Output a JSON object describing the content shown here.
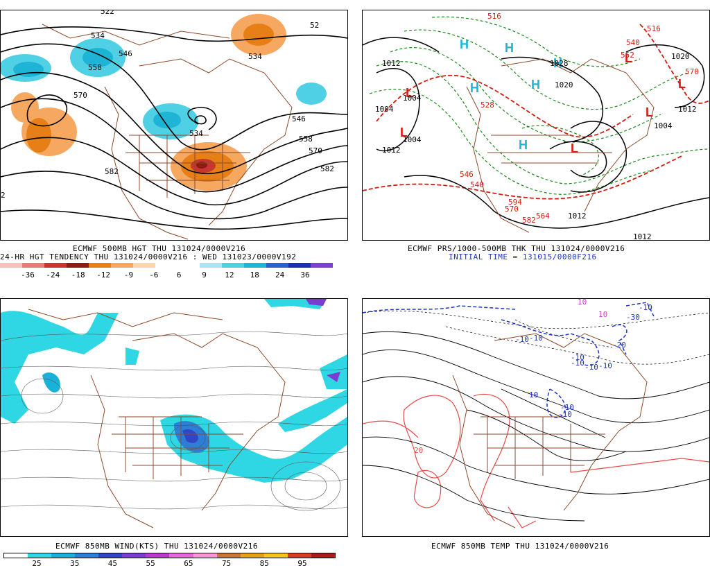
{
  "panels": [
    {
      "id": "tl",
      "captions": [
        "ECMWF 500MB HGT THU 131024/0000V216",
        "24-HR HGT TENDENCY THU 131024/0000V216 : WED 131023/0000V192"
      ],
      "contour_labels": [
        "534",
        "558",
        "546",
        "570",
        "582",
        "534",
        "546",
        "558",
        "570",
        "582",
        "534",
        "52",
        "522",
        "2"
      ],
      "colorbar": {
        "colors": [
          "#f6c2c0",
          "#e87a78",
          "#c8372f",
          "#8d1c12",
          "#e57f16",
          "#f6a860",
          "#fbd5ac",
          "#ffffff",
          "#ffffff",
          "#a8e7f2",
          "#4fd0e4",
          "#1eb4d6",
          "#2a5fce",
          "#1a2fb0",
          "#7b3fd1"
        ],
        "ticks": [
          "-36",
          "-24",
          "-18",
          "-12",
          "-9",
          "-6",
          "6",
          "9",
          "12",
          "18",
          "24",
          "36"
        ]
      }
    },
    {
      "id": "tr",
      "captions": [
        "ECMWF PRS/1000-500MB THK THU 131024/0000V216"
      ],
      "initial_time": "INITIAL TIME = 131015/0000F216",
      "contour_labels": [
        "1012",
        "1004",
        "1004",
        "1012",
        "1020",
        "1004",
        "1012",
        "1004",
        "1012",
        "1012",
        "1028",
        "1020",
        "516",
        "552",
        "540",
        "570",
        "546",
        "528",
        "516",
        "540",
        "570",
        "594",
        "582",
        "564"
      ],
      "symbols": [
        "H",
        "H",
        "H",
        "H",
        "H",
        "H",
        "L",
        "L",
        "L",
        "L",
        "L",
        "L"
      ]
    },
    {
      "id": "bl",
      "captions": [
        "ECMWF 850MB WIND(KTS) THU 131024/0000V216"
      ],
      "colorbar": {
        "colors": [
          "#ffffff",
          "#2fd6e3",
          "#1ab1d8",
          "#2f7ed6",
          "#3046c4",
          "#7a3dcf",
          "#b53bc9",
          "#e36bd7",
          "#f59ad9",
          "#c6783a",
          "#e0a21c",
          "#f2c41e",
          "#d33e2a",
          "#a81c1c"
        ],
        "ticks": [
          "25",
          "35",
          "45",
          "55",
          "65",
          "75",
          "85",
          "95"
        ]
      }
    },
    {
      "id": "br",
      "captions": [
        "ECMWF 850MB TEMP THU 131024/0000V216"
      ],
      "contour_labels": [
        "-10",
        "-10",
        "-10",
        "-10",
        "-10",
        "-10",
        "-10",
        "-10",
        "-10",
        "10",
        "10",
        "10",
        "20",
        "-20",
        "-30"
      ]
    }
  ]
}
